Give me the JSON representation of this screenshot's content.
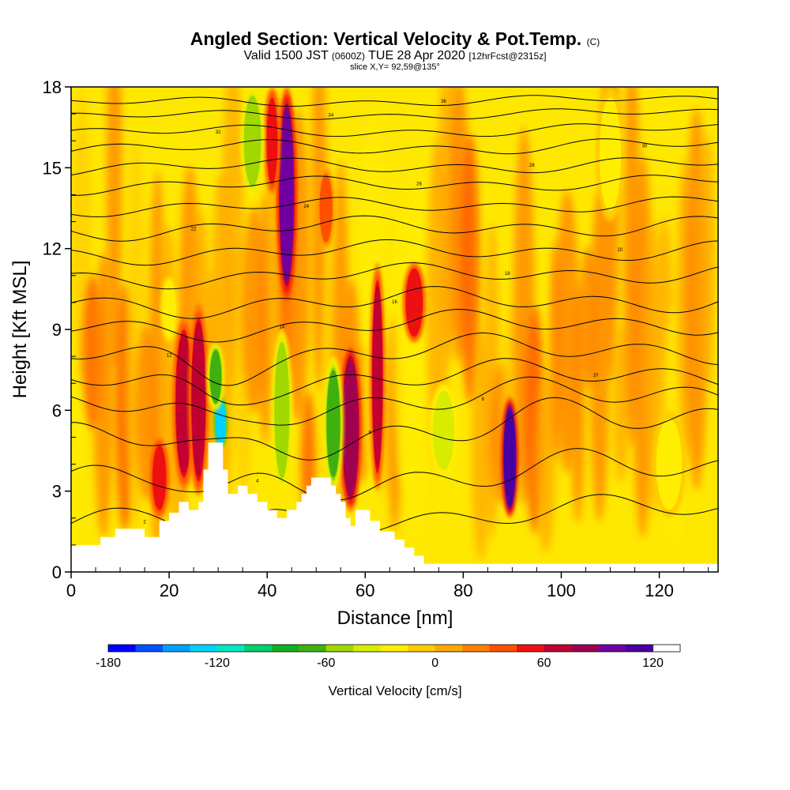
{
  "chart_data": {
    "type": "heatmap",
    "title": {
      "main": "Angled Section: Vertical Velocity & Pot.Temp.",
      "units": "(C)"
    },
    "subtitle": {
      "valid": "Valid 1500 JST",
      "utc": "(0600Z)",
      "date": "TUE 28 Apr 2020",
      "fcst": "[12hrFcst@2315z]",
      "slice": "slice X,Y= 92,59@135°"
    },
    "xlabel": "Distance [nm]",
    "ylabel": "Height [Kft MSL]",
    "xlim": [
      0,
      132
    ],
    "ylim": [
      0,
      18
    ],
    "x_ticks": [
      0,
      20,
      40,
      60,
      80,
      100,
      120
    ],
    "y_ticks": [
      0,
      3,
      6,
      9,
      12,
      15,
      18
    ],
    "colorbar": {
      "label": "Vertical Velocity [cm/s]",
      "ticks": [
        -180,
        -120,
        -60,
        0,
        60,
        120
      ],
      "range": [
        -180,
        135
      ],
      "step": 15,
      "colors": [
        "#0000ff",
        "#0050ff",
        "#00a0ff",
        "#00d0ff",
        "#00e8c0",
        "#00d070",
        "#10b020",
        "#40b010",
        "#a0d800",
        "#d8ec00",
        "#ffee00",
        "#ffcc00",
        "#ffa800",
        "#ff8000",
        "#ff5000",
        "#ee1010",
        "#c00030",
        "#a00050",
        "#7000a0",
        "#4800a0"
      ]
    },
    "terrain": [
      [
        0,
        1
      ],
      [
        6,
        1
      ],
      [
        6,
        1.3
      ],
      [
        9,
        1.3
      ],
      [
        9,
        1.6
      ],
      [
        15,
        1.6
      ],
      [
        15,
        1.3
      ],
      [
        18,
        1.3
      ],
      [
        18,
        1.9
      ],
      [
        20,
        1.9
      ],
      [
        20,
        2.2
      ],
      [
        22,
        2.2
      ],
      [
        22,
        2.6
      ],
      [
        24,
        2.6
      ],
      [
        24,
        2.3
      ],
      [
        26,
        2.3
      ],
      [
        26,
        2.6
      ],
      [
        27,
        2.6
      ],
      [
        27,
        3.8
      ],
      [
        28,
        3.8
      ],
      [
        28,
        4.8
      ],
      [
        31,
        4.8
      ],
      [
        31,
        3.8
      ],
      [
        32,
        3.8
      ],
      [
        32,
        2.9
      ],
      [
        34,
        2.9
      ],
      [
        34,
        3.2
      ],
      [
        36,
        3.2
      ],
      [
        36,
        2.9
      ],
      [
        38,
        2.9
      ],
      [
        38,
        2.6
      ],
      [
        40,
        2.6
      ],
      [
        40,
        2.3
      ],
      [
        42,
        2.3
      ],
      [
        42,
        2.0
      ],
      [
        44,
        2.0
      ],
      [
        44,
        2.3
      ],
      [
        46,
        2.3
      ],
      [
        46,
        2.6
      ],
      [
        47,
        2.6
      ],
      [
        47,
        2.9
      ],
      [
        48,
        2.9
      ],
      [
        48,
        3.2
      ],
      [
        49,
        3.2
      ],
      [
        49,
        3.5
      ],
      [
        53,
        3.5
      ],
      [
        53,
        3.2
      ],
      [
        54,
        3.2
      ],
      [
        54,
        2.9
      ],
      [
        55,
        2.9
      ],
      [
        55,
        2.6
      ],
      [
        56,
        2.6
      ],
      [
        56,
        2.0
      ],
      [
        57,
        2.0
      ],
      [
        57,
        1.7
      ],
      [
        58,
        1.7
      ],
      [
        58,
        2.3
      ],
      [
        61,
        2.3
      ],
      [
        61,
        1.9
      ],
      [
        63,
        1.9
      ],
      [
        63,
        1.5
      ],
      [
        66,
        1.5
      ],
      [
        66,
        1.2
      ],
      [
        68,
        1.2
      ],
      [
        68,
        0.9
      ],
      [
        70,
        0.9
      ],
      [
        70,
        0.6
      ],
      [
        72,
        0.6
      ],
      [
        72,
        0.3
      ],
      [
        132,
        0.3
      ]
    ],
    "updrafts": [
      {
        "x": 44,
        "y0": 10,
        "y1": 18,
        "w": 2.5,
        "value": 95
      },
      {
        "x": 23,
        "y0": 3,
        "y1": 9.5,
        "w": 3,
        "value": 70
      },
      {
        "x": 26,
        "y0": 2.8,
        "y1": 10,
        "w": 2.5,
        "value": 60
      },
      {
        "x": 57,
        "y0": 2.2,
        "y1": 8.5,
        "w": 3,
        "value": 75
      },
      {
        "x": 62.5,
        "y0": 3,
        "y1": 11.5,
        "w": 1.6,
        "value": 70
      },
      {
        "x": 89.5,
        "y0": 2,
        "y1": 6.5,
        "w": 2,
        "value": 110
      },
      {
        "x": 70,
        "y0": 8.5,
        "y1": 11.5,
        "w": 3,
        "value": 55
      },
      {
        "x": 41,
        "y0": 14,
        "y1": 18,
        "w": 1.8,
        "value": 50
      },
      {
        "x": 52,
        "y0": 12,
        "y1": 15,
        "w": 2,
        "value": 40
      },
      {
        "x": 18,
        "y0": 2,
        "y1": 5,
        "w": 2.5,
        "value": 50
      }
    ],
    "downdrafts": [
      {
        "x": 30.5,
        "y0": 4.5,
        "y1": 6.6,
        "w": 1.6,
        "value": -125
      },
      {
        "x": 29.5,
        "y0": 6,
        "y1": 8.5,
        "w": 2,
        "value": -70
      },
      {
        "x": 37,
        "y0": 14,
        "y1": 18,
        "w": 3,
        "value": -55
      },
      {
        "x": 43,
        "y0": 3,
        "y1": 9,
        "w": 2.5,
        "value": -60
      },
      {
        "x": 53.5,
        "y0": 3,
        "y1": 8,
        "w": 2.5,
        "value": -65
      },
      {
        "x": 76,
        "y0": 3.5,
        "y1": 7,
        "w": 4,
        "value": -45
      },
      {
        "x": 110,
        "y0": 13,
        "y1": 18,
        "w": 4,
        "value": -20
      },
      {
        "x": 122,
        "y0": 2,
        "y1": 6,
        "w": 5,
        "value": -25
      },
      {
        "x": 20,
        "y0": 8.5,
        "y1": 11,
        "w": 2,
        "value": -30
      }
    ],
    "isentropes": [
      {
        "label": "2",
        "y0": 1.8,
        "slope": 0.004,
        "amp": 0.6
      },
      {
        "label": "4",
        "y0": 3.2,
        "slope": 0.005,
        "amp": 0.8
      },
      {
        "label": "6",
        "y0": 4.7,
        "slope": 0.008,
        "amp": 0.9
      },
      {
        "label": "8",
        "y0": 6.0,
        "slope": 0.005,
        "amp": 0.7
      },
      {
        "label": "10",
        "y0": 7.0,
        "slope": 0.006,
        "amp": 0.6
      },
      {
        "label": "12",
        "y0": 8.0,
        "slope": 0.005,
        "amp": 0.6
      },
      {
        "label": "14",
        "y0": 9.0,
        "slope": 0.005,
        "amp": 0.5
      },
      {
        "label": "16",
        "y0": 9.9,
        "slope": 0.004,
        "amp": 0.5
      },
      {
        "label": "18",
        "y0": 10.9,
        "slope": 0.004,
        "amp": 0.4
      },
      {
        "label": "20",
        "y0": 11.8,
        "slope": 0.003,
        "amp": 0.4
      },
      {
        "label": "22",
        "y0": 12.7,
        "slope": 0.003,
        "amp": 0.4
      },
      {
        "label": "24",
        "y0": 13.5,
        "slope": 0.003,
        "amp": 0.3
      },
      {
        "label": "26",
        "y0": 14.3,
        "slope": 0.003,
        "amp": 0.3
      },
      {
        "label": "28",
        "y0": 15.0,
        "slope": 0.002,
        "amp": 0.3
      },
      {
        "label": "30",
        "y0": 15.7,
        "slope": 0.002,
        "amp": 0.3
      },
      {
        "label": "32",
        "y0": 16.3,
        "slope": 0.002,
        "amp": 0.25
      },
      {
        "label": "34",
        "y0": 16.9,
        "slope": 0.002,
        "amp": 0.2
      },
      {
        "label": "36",
        "y0": 17.4,
        "slope": 0.002,
        "amp": 0.2
      }
    ]
  }
}
